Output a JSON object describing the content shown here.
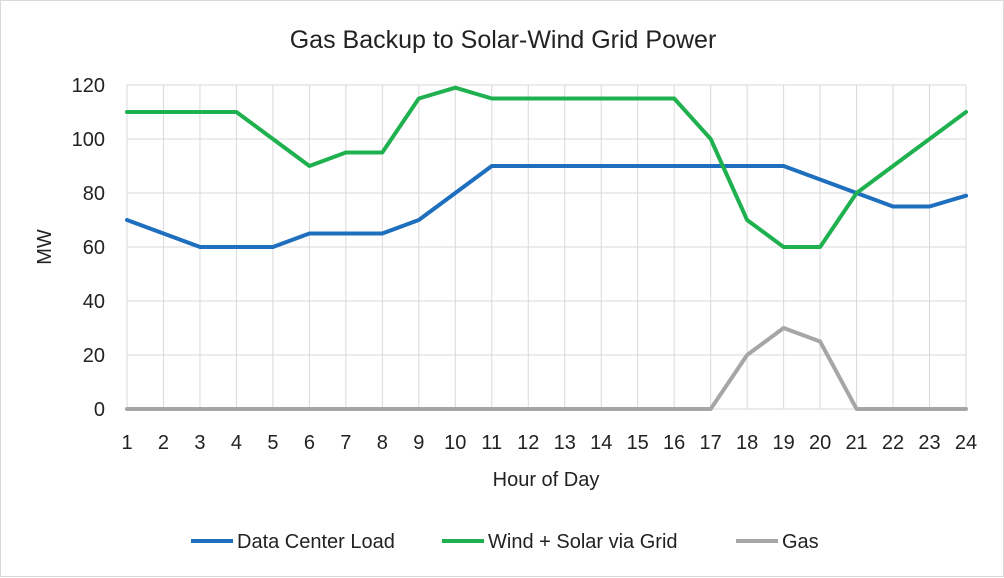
{
  "chart_data": {
    "type": "line",
    "title": "Gas Backup to Solar-Wind Grid Power",
    "xlabel": "Hour of Day",
    "ylabel": "MW",
    "ylim": [
      0,
      120
    ],
    "yticks": [
      0,
      20,
      40,
      60,
      80,
      100,
      120
    ],
    "x": [
      1,
      2,
      3,
      4,
      5,
      6,
      7,
      8,
      9,
      10,
      11,
      12,
      13,
      14,
      15,
      16,
      17,
      18,
      19,
      20,
      21,
      22,
      23,
      24
    ],
    "grid": true,
    "legend": "bottom",
    "series": [
      {
        "name": "Data Center Load",
        "color": "#1f6fbf",
        "values": [
          70,
          65,
          60,
          60,
          60,
          65,
          65,
          65,
          70,
          80,
          90,
          90,
          90,
          90,
          90,
          90,
          90,
          90,
          90,
          85,
          80,
          75,
          75,
          79
        ]
      },
      {
        "name": "Wind + Solar via Grid",
        "color": "#1fb14f",
        "values": [
          110,
          110,
          110,
          110,
          100,
          90,
          95,
          95,
          115,
          119,
          115,
          115,
          115,
          115,
          115,
          115,
          100,
          70,
          60,
          60,
          80,
          90,
          100,
          110
        ]
      },
      {
        "name": "Gas",
        "color": "#a6a6a6",
        "values": [
          0,
          0,
          0,
          0,
          0,
          0,
          0,
          0,
          0,
          0,
          0,
          0,
          0,
          0,
          0,
          0,
          0,
          20,
          30,
          25,
          0,
          0,
          0,
          0
        ]
      }
    ]
  }
}
